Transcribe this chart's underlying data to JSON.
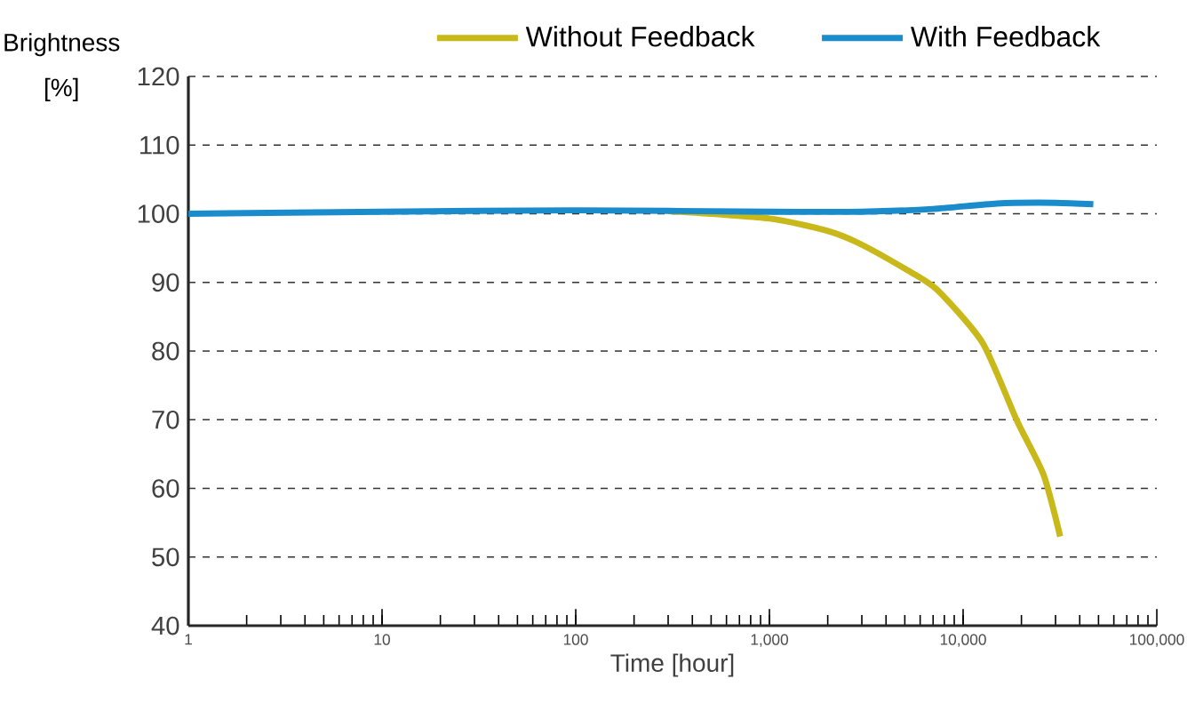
{
  "chart_data": {
    "type": "line",
    "xlabel": "Time  [hour]",
    "ylabel": "Brightness [%]",
    "log": "x",
    "xlim": [
      1,
      100000
    ],
    "xticks": [
      1,
      10,
      100,
      {
        "value": 1000,
        "label": "1,000"
      },
      {
        "value": 10000,
        "label": "10,000"
      },
      {
        "value": 100000,
        "label": "100,000"
      }
    ],
    "ylim": [
      40,
      120
    ],
    "yticks": [
      40,
      50,
      60,
      70,
      80,
      90,
      100,
      110,
      120
    ],
    "grid": "y",
    "legend": "top",
    "marker": "none",
    "line_style": "solid",
    "series": [
      {
        "name": "Without Feedback",
        "color": "#c8b81a",
        "x": [
          300,
          1000,
          2000,
          2900,
          5000,
          7300,
          12600,
          19000,
          26000,
          31700
        ],
        "values": [
          100.4,
          99.3,
          97.5,
          95.7,
          92,
          89,
          81.2,
          69.8,
          62,
          53
        ]
      },
      {
        "name": "With Feedback",
        "color": "#1a8ccc",
        "x": [
          1,
          10,
          100,
          1000,
          3000,
          7000,
          15000,
          30000,
          47000
        ],
        "values": [
          100,
          100.3,
          100.5,
          100.3,
          100.3,
          100.7,
          101.5,
          101.6,
          101.4
        ]
      }
    ]
  }
}
